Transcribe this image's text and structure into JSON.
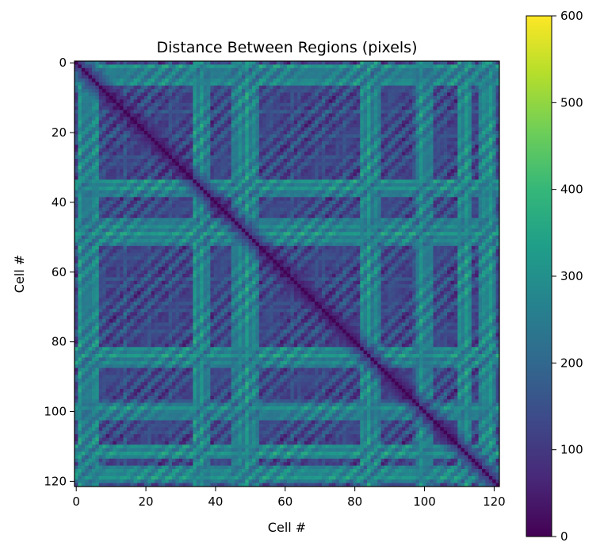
{
  "chart_data": {
    "type": "heatmap",
    "title": "Distance Between Regions (pixels)",
    "xlabel": "Cell #",
    "ylabel": "Cell #",
    "n_cells": 122,
    "xlim": [
      0,
      122
    ],
    "ylim": [
      122,
      0
    ],
    "x_ticks": [
      0,
      20,
      40,
      60,
      80,
      100,
      120
    ],
    "y_ticks": [
      0,
      20,
      40,
      60,
      80,
      100,
      120
    ],
    "colorbar": {
      "min": 0,
      "max": 600,
      "ticks": [
        0,
        100,
        200,
        300,
        400,
        500,
        600
      ],
      "colormap": "viridis"
    },
    "bright_row_bands": [
      [
        1,
        6
      ],
      [
        34,
        38
      ],
      [
        45,
        52
      ],
      [
        82,
        87
      ],
      [
        98,
        102
      ],
      [
        110,
        113
      ],
      [
        116,
        120
      ]
    ],
    "bright_col_bands": [
      [
        82,
        87
      ],
      [
        98,
        102
      ],
      [
        110,
        113
      ]
    ],
    "values_note": "symmetric distance matrix, zero on diagonal"
  },
  "colors": {
    "viridis": [
      "#440154",
      "#482878",
      "#3e4989",
      "#31688e",
      "#26828e",
      "#1f9e89",
      "#35b779",
      "#6ece58",
      "#b5de2b",
      "#fde725"
    ]
  }
}
